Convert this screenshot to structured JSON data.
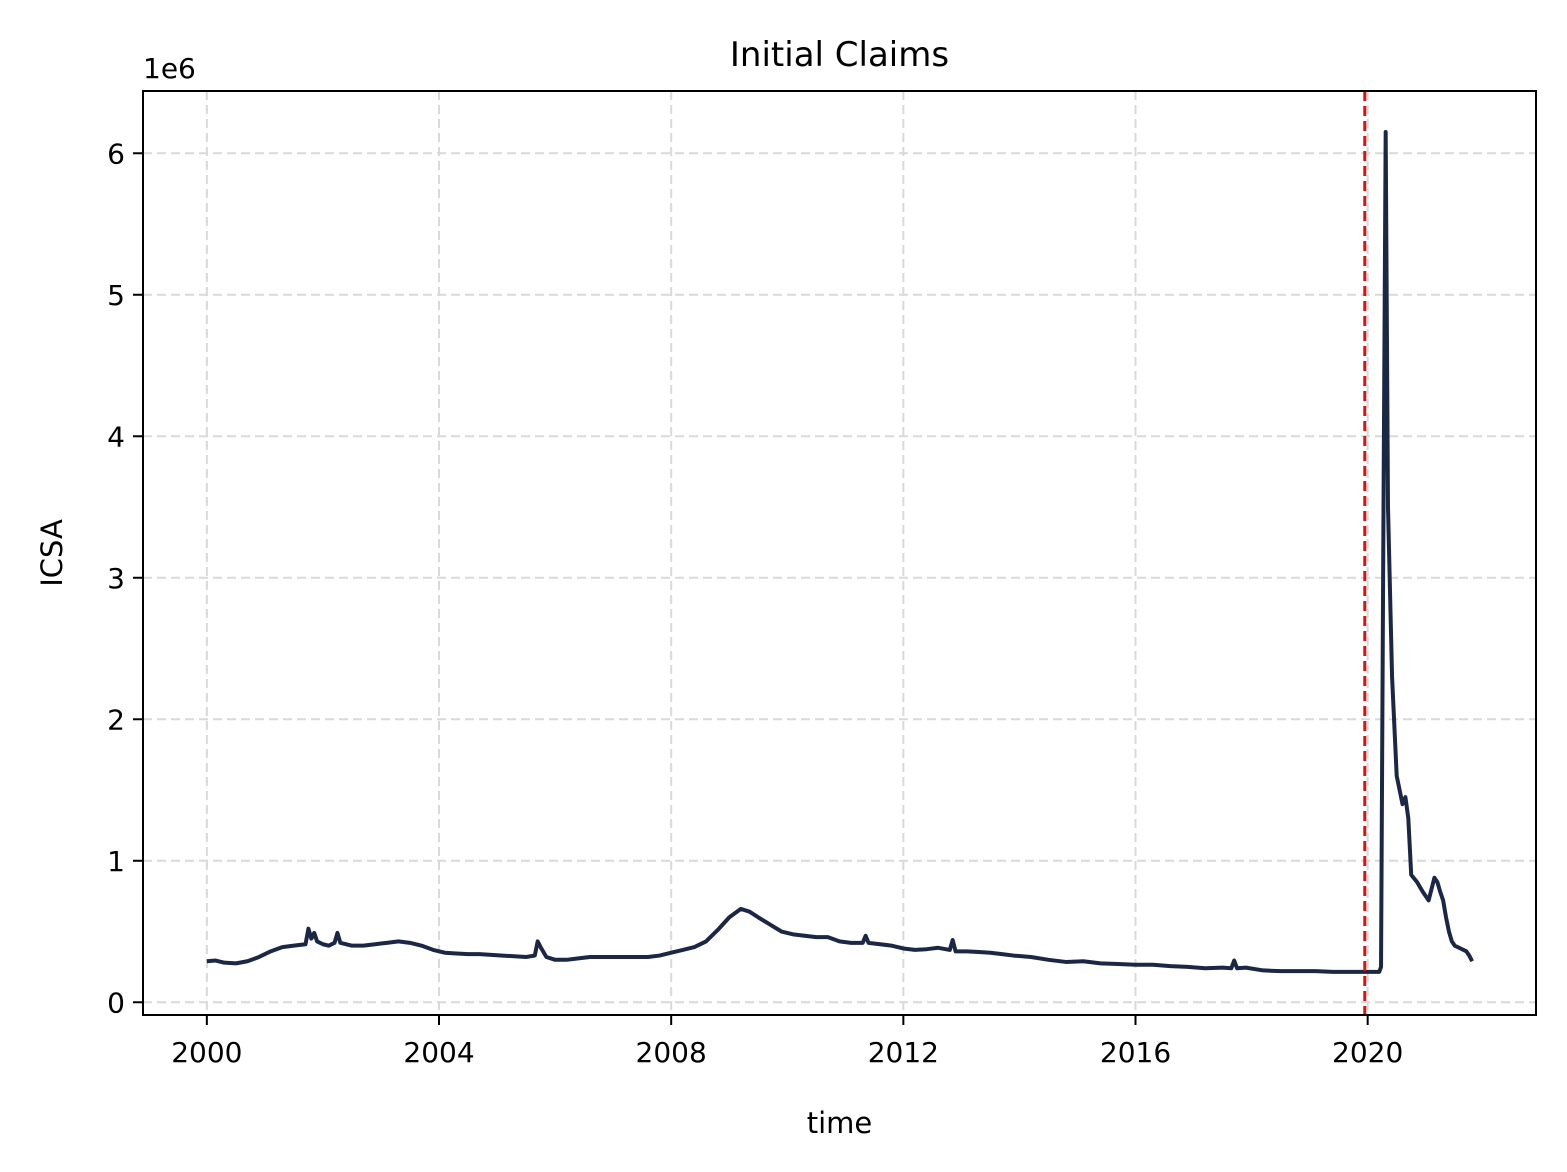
{
  "chart_data": {
    "type": "line",
    "title": "Initial Claims",
    "xlabel": "time",
    "ylabel": "ICSA",
    "y_offset_label": "1e6",
    "xlim": [
      1998.9,
      2022.9
    ],
    "ylim": [
      -90000,
      6440000
    ],
    "x_ticks": [
      2000,
      2004,
      2008,
      2012,
      2016,
      2020
    ],
    "x_tick_labels": [
      "2000",
      "2004",
      "2008",
      "2012",
      "2016",
      "2020"
    ],
    "y_ticks": [
      0,
      1000000,
      2000000,
      3000000,
      4000000,
      5000000,
      6000000
    ],
    "y_tick_labels": [
      "0",
      "1",
      "2",
      "3",
      "4",
      "5",
      "6"
    ],
    "grid": true,
    "line_color": "#1b2744",
    "reference_line": {
      "x": 2019.95,
      "color": "#e01010",
      "style": "dashed"
    },
    "series": [
      {
        "x": [
          2000.0,
          2000.15,
          2000.3,
          2000.5,
          2000.7,
          2000.9,
          2001.1,
          2001.3,
          2001.5,
          2001.7,
          2001.75,
          2001.8,
          2001.85,
          2001.9,
          2002.0,
          2002.1,
          2002.2,
          2002.25,
          2002.3,
          2002.5,
          2002.7,
          2002.9,
          2003.1,
          2003.3,
          2003.5,
          2003.7,
          2003.9,
          2004.1,
          2004.3,
          2004.5,
          2004.7,
          2004.9,
          2005.1,
          2005.3,
          2005.5,
          2005.65,
          2005.7,
          2005.75,
          2005.85,
          2006.0,
          2006.2,
          2006.4,
          2006.6,
          2006.8,
          2007.0,
          2007.2,
          2007.4,
          2007.6,
          2007.8,
          2008.0,
          2008.2,
          2008.4,
          2008.6,
          2008.8,
          2009.0,
          2009.2,
          2009.35,
          2009.5,
          2009.7,
          2009.9,
          2010.1,
          2010.3,
          2010.5,
          2010.7,
          2010.9,
          2011.1,
          2011.3,
          2011.35,
          2011.4,
          2011.6,
          2011.8,
          2012.0,
          2012.2,
          2012.4,
          2012.6,
          2012.8,
          2012.85,
          2012.9,
          2013.1,
          2013.3,
          2013.5,
          2013.7,
          2013.9,
          2014.2,
          2014.5,
          2014.8,
          2015.1,
          2015.4,
          2015.7,
          2016.0,
          2016.3,
          2016.6,
          2016.9,
          2017.2,
          2017.5,
          2017.65,
          2017.7,
          2017.75,
          2017.9,
          2018.2,
          2018.5,
          2018.8,
          2019.1,
          2019.4,
          2019.7,
          2020.0,
          2020.15,
          2020.2,
          2020.23,
          2020.27,
          2020.31,
          2020.35,
          2020.42,
          2020.5,
          2020.55,
          2020.6,
          2020.65,
          2020.7,
          2020.75,
          2020.85,
          2020.95,
          2021.0,
          2021.05,
          2021.1,
          2021.15,
          2021.2,
          2021.25,
          2021.3,
          2021.35,
          2021.4,
          2021.45,
          2021.5,
          2021.6,
          2021.7,
          2021.75,
          2021.8
        ],
        "y": [
          290000,
          295000,
          280000,
          275000,
          290000,
          320000,
          360000,
          390000,
          400000,
          410000,
          520000,
          450000,
          490000,
          430000,
          410000,
          400000,
          420000,
          490000,
          420000,
          400000,
          400000,
          410000,
          420000,
          430000,
          420000,
          400000,
          370000,
          350000,
          345000,
          340000,
          340000,
          335000,
          330000,
          325000,
          320000,
          330000,
          430000,
          390000,
          320000,
          300000,
          300000,
          310000,
          320000,
          320000,
          320000,
          320000,
          320000,
          320000,
          330000,
          350000,
          370000,
          390000,
          430000,
          510000,
          600000,
          660000,
          640000,
          600000,
          550000,
          500000,
          480000,
          470000,
          460000,
          460000,
          430000,
          420000,
          420000,
          470000,
          420000,
          410000,
          400000,
          380000,
          370000,
          375000,
          385000,
          370000,
          440000,
          360000,
          360000,
          355000,
          350000,
          340000,
          330000,
          320000,
          300000,
          285000,
          290000,
          275000,
          270000,
          265000,
          265000,
          255000,
          250000,
          240000,
          245000,
          240000,
          295000,
          240000,
          245000,
          225000,
          220000,
          220000,
          220000,
          215000,
          215000,
          215000,
          215000,
          215000,
          250000,
          3300000,
          6150000,
          3500000,
          2300000,
          1600000,
          1500000,
          1400000,
          1450000,
          1300000,
          900000,
          850000,
          780000,
          750000,
          720000,
          800000,
          880000,
          850000,
          780000,
          720000,
          600000,
          500000,
          430000,
          400000,
          380000,
          360000,
          330000,
          290000
        ]
      }
    ]
  }
}
